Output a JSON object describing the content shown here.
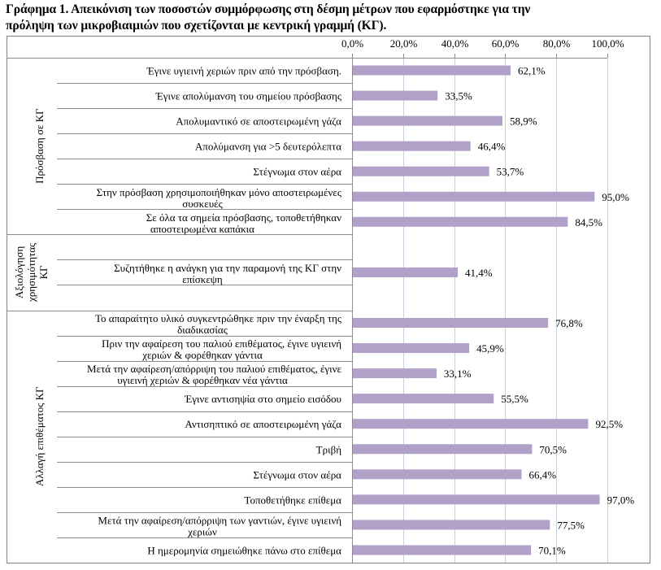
{
  "title_line1": "Γράφημα 1. Απεικόνιση των ποσοστών συμμόρφωσης στη δέσμη μέτρων που εφαρμόστηκε για την",
  "title_line2": "πρόληψη των μικροβιαιμιών που σχετίζονται με κεντρική γραμμή (ΚΓ).",
  "chart_data": {
    "type": "bar",
    "orientation": "horizontal",
    "title": "Γράφημα 1. Απεικόνιση των ποσοστών συμμόρφωσης στη δέσμη μέτρων που εφαρμόστηκε για την πρόληψη των μικροβιαιμιών που σχετίζονται με κεντρική γραμμή (ΚΓ).",
    "xlabel": "",
    "ylabel": "",
    "xlim": [
      0,
      100
    ],
    "x_ticks": [
      "0,0%",
      "20,0%",
      "40,0%",
      "60,0%",
      "80,0%",
      "100,0%"
    ],
    "x_axis_position": "top",
    "grid": true,
    "legend": "none",
    "bar_color": "#b1a0c7",
    "groups": [
      {
        "name": "Πρόσβαση σε ΚΓ",
        "items": [
          {
            "label": [
              "Έγινε υγιεινή χεριών πριν από την πρόσβαση."
            ],
            "value": 62.1,
            "value_label": "62,1%"
          },
          {
            "label": [
              "Έγινε απολύμανση του σημείου πρόσβασης"
            ],
            "value": 33.5,
            "value_label": "33,5%"
          },
          {
            "label": [
              "Απολυμαντικό σε αποστειρωμένη γάζα"
            ],
            "value": 58.9,
            "value_label": "58,9%"
          },
          {
            "label": [
              "Απολύμανση για >5 δευτερόλεπτα"
            ],
            "value": 46.4,
            "value_label": "46,4%"
          },
          {
            "label": [
              "Στέγνωμα στον αέρα"
            ],
            "value": 53.7,
            "value_label": "53,7%"
          },
          {
            "label": [
              "Στην πρόσβαση χρησιμοποιήθηκαν μόνο αποστειρωμένες",
              "συσκευές"
            ],
            "value": 95.0,
            "value_label": "95,0%"
          },
          {
            "label": [
              "Σε όλα τα σημεία πρόσβασης, τοποθετήθηκαν",
              "αποστειρωμένα καπάκια"
            ],
            "value": 84.5,
            "value_label": "84,5%"
          }
        ]
      },
      {
        "name": "Αξιολόγηση χρησιμότητας ΚΓ",
        "name_lines": [
          "Αξιολόγηση",
          "χρησιμότητας",
          "ΚΓ"
        ],
        "items": [
          {
            "label": [
              ""
            ],
            "value": null,
            "value_label": ""
          },
          {
            "label": [
              "Συζητήθηκε η ανάγκη για την παραμονή της ΚΓ στην",
              "επίσκεψη"
            ],
            "value": 41.4,
            "value_label": "41,4%"
          },
          {
            "label": [
              ""
            ],
            "value": null,
            "value_label": ""
          }
        ]
      },
      {
        "name": "Αλλαγή επιθέματος ΚΓ",
        "items": [
          {
            "label": [
              "Το απαραίτητο υλικό συγκεντρώθηκε πριν την έναρξη της",
              "διαδικασίας"
            ],
            "value": 76.8,
            "value_label": "76,8%"
          },
          {
            "label": [
              "Πριν την αφαίρεση του παλιού επιθέματος, έγινε υγιεινή",
              "χεριών & φορέθηκαν γάντια"
            ],
            "value": 45.9,
            "value_label": "45,9%"
          },
          {
            "label": [
              "Μετά την αφαίρεση/απόρριψη του παλιού επιθέματος, έγινε",
              "υγιεινή χεριών & φορέθηκαν νέα γάντια"
            ],
            "value": 33.1,
            "value_label": "33,1%"
          },
          {
            "label": [
              "Έγινε αντισηψία στο σημείο εισόδου"
            ],
            "value": 55.5,
            "value_label": "55,5%"
          },
          {
            "label": [
              "Αντισηπτικό σε αποστειρωμένη γάζα"
            ],
            "value": 92.5,
            "value_label": "92,5%"
          },
          {
            "label": [
              "Τριβή"
            ],
            "value": 70.5,
            "value_label": "70,5%"
          },
          {
            "label": [
              "Στέγνωμα στον αέρα"
            ],
            "value": 66.4,
            "value_label": "66,4%"
          },
          {
            "label": [
              "Τοποθετήθηκε επίθεμα"
            ],
            "value": 97.0,
            "value_label": "97,0%"
          },
          {
            "label": [
              "Μετά την αφαίρεση/απόρριψη των γαντιών, έγινε υγιεινή",
              "χεριών"
            ],
            "value": 77.5,
            "value_label": "77,5%"
          },
          {
            "label": [
              "Η ημερομηνία σημειώθηκε πάνω στο επίθεμα"
            ],
            "value": 70.1,
            "value_label": "70,1%"
          }
        ]
      }
    ]
  }
}
